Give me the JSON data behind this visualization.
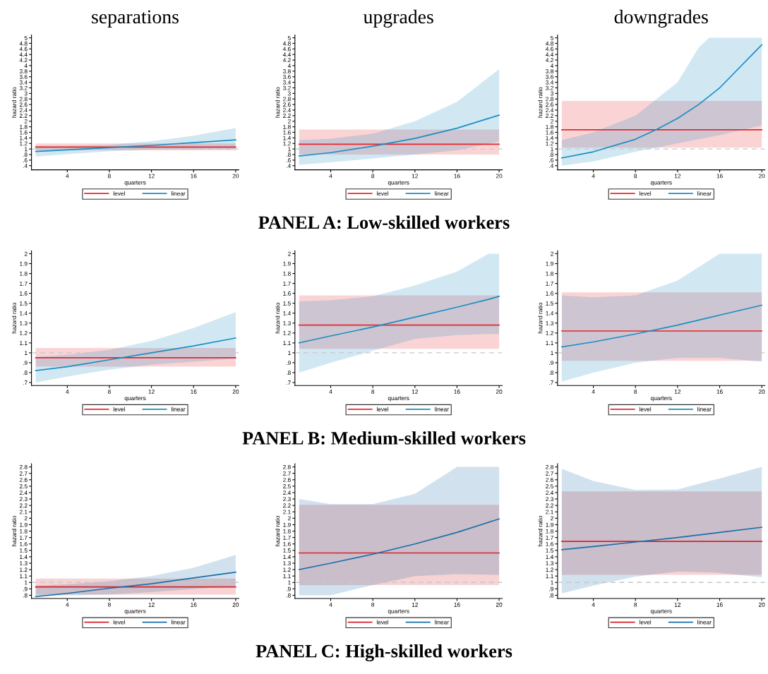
{
  "chart_data": [
    {
      "type": "line",
      "title": "separations",
      "xlabel": "quarters",
      "ylabel": "hazard ratio",
      "xlim": [
        0.6,
        20.3
      ],
      "xticks": [
        4,
        8,
        12,
        16,
        20
      ],
      "ylim": [
        0.25,
        5.1
      ],
      "yticks": [
        {
          "value": 0.4,
          "label": ".4"
        },
        {
          "value": 0.6,
          "label": ".6"
        },
        {
          "value": 0.8,
          "label": ".8"
        },
        1,
        1.2,
        1.4,
        1.6,
        1.8,
        2,
        2.2,
        2.4,
        2.6,
        2.8,
        3,
        3.2,
        3.4,
        3.6,
        3.8,
        4,
        4.2,
        4.4,
        4.6,
        4.8,
        5
      ],
      "grid": false,
      "legend": "bottom",
      "ref_lines": [
        {
          "axis": "y",
          "value": 1,
          "color": "#c8c8c8",
          "line_style": "dashed"
        }
      ],
      "series": [
        {
          "name": "level",
          "color": "#e8262b",
          "x": [
            1,
            20
          ],
          "values": [
            1.07,
            1.07
          ],
          "lower": [
            0.95,
            0.95
          ],
          "upper": [
            1.2,
            1.2
          ]
        },
        {
          "name": "linear",
          "color": "#1a8ec2",
          "x": [
            1,
            4,
            8,
            12,
            16,
            20
          ],
          "values": [
            0.91,
            0.97,
            1.05,
            1.13,
            1.23,
            1.33
          ],
          "lower": [
            0.73,
            0.81,
            0.92,
            0.98,
            0.99,
            1.0
          ],
          "upper": [
            1.12,
            1.12,
            1.15,
            1.28,
            1.48,
            1.76
          ]
        }
      ]
    },
    {
      "type": "line",
      "title": "upgrades",
      "xlabel": "quarters",
      "ylabel": "hazard ratio",
      "xlim": [
        0.6,
        20.3
      ],
      "xticks": [
        4,
        8,
        12,
        16,
        20
      ],
      "ylim": [
        0.25,
        5.1
      ],
      "yticks": [
        {
          "value": 0.4,
          "label": ".4"
        },
        {
          "value": 0.6,
          "label": ".6"
        },
        {
          "value": 0.8,
          "label": ".8"
        },
        1,
        1.2,
        1.4,
        1.6,
        1.8,
        2,
        2.2,
        2.4,
        2.6,
        2.8,
        3,
        3.2,
        3.4,
        3.6,
        3.8,
        4,
        4.2,
        4.4,
        4.6,
        4.8,
        5
      ],
      "grid": false,
      "legend": "bottom",
      "ref_lines": [
        {
          "axis": "y",
          "value": 1,
          "color": "#c8c8c8",
          "line_style": "dashed"
        }
      ],
      "annotations": [
        "PANEL A: Low-skilled workers"
      ],
      "series": [
        {
          "name": "level",
          "color": "#e8262b",
          "x": [
            1,
            20
          ],
          "values": [
            1.17,
            1.17
          ],
          "lower": [
            0.8,
            0.8
          ],
          "upper": [
            1.7,
            1.7
          ]
        },
        {
          "name": "linear",
          "color": "#1a8ec2",
          "x": [
            1,
            4,
            8,
            12,
            16,
            20
          ],
          "values": [
            0.75,
            0.87,
            1.1,
            1.38,
            1.75,
            2.22
          ],
          "lower": [
            0.43,
            0.52,
            0.66,
            0.8,
            0.95,
            1.27
          ],
          "upper": [
            1.32,
            1.37,
            1.55,
            2.0,
            2.7,
            3.87
          ]
        }
      ]
    },
    {
      "type": "line",
      "title": "downgrades",
      "xlabel": "quarters",
      "ylabel": "hazard ratio",
      "xlim": [
        0.6,
        20.3
      ],
      "xticks": [
        4,
        8,
        12,
        16,
        20
      ],
      "ylim": [
        0.25,
        5.1
      ],
      "yticks": [
        {
          "value": 0.4,
          "label": ".4"
        },
        {
          "value": 0.6,
          "label": ".6"
        },
        {
          "value": 0.8,
          "label": ".8"
        },
        1,
        1.2,
        1.4,
        1.6,
        1.8,
        2,
        2.2,
        2.4,
        2.6,
        2.8,
        3,
        3.2,
        3.4,
        3.6,
        3.8,
        4,
        4.2,
        4.4,
        4.6,
        4.8,
        5
      ],
      "grid": false,
      "legend": "bottom",
      "ref_lines": [
        {
          "axis": "y",
          "value": 1,
          "color": "#c8c8c8",
          "line_style": "dashed"
        }
      ],
      "series": [
        {
          "name": "level",
          "color": "#e8262b",
          "x": [
            1,
            20
          ],
          "values": [
            1.69,
            1.69
          ],
          "lower": [
            1.05,
            1.05
          ],
          "upper": [
            2.73,
            2.73
          ]
        },
        {
          "name": "linear",
          "color": "#1a8ec2",
          "x": [
            1,
            4,
            8,
            10,
            12,
            14,
            15,
            16,
            20
          ],
          "values": [
            0.68,
            0.9,
            1.35,
            1.7,
            2.1,
            2.6,
            2.9,
            3.2,
            4.75
          ],
          "lower": [
            0.4,
            0.55,
            0.9,
            1.05,
            1.2,
            1.35,
            1.42,
            1.5,
            1.85
          ],
          "upper": [
            1.32,
            1.6,
            2.2,
            2.8,
            3.4,
            4.65,
            5.0,
            5.0,
            5.0
          ]
        }
      ]
    },
    {
      "type": "line",
      "xlabel": "quarters",
      "ylabel": "hazard ratio",
      "xlim": [
        0.6,
        20.3
      ],
      "xticks": [
        4,
        8,
        12,
        16,
        20
      ],
      "ylim": [
        0.67,
        2.03
      ],
      "yticks": [
        {
          "value": 0.7,
          "label": ".7"
        },
        {
          "value": 0.8,
          "label": ".8"
        },
        {
          "value": 0.9,
          "label": ".9"
        },
        1,
        1.1,
        1.2,
        1.3,
        1.4,
        1.5,
        1.6,
        1.7,
        1.8,
        1.9,
        2
      ],
      "grid": false,
      "legend": "bottom",
      "ref_lines": [
        {
          "axis": "y",
          "value": 1,
          "color": "#c8c8c8",
          "line_style": "dashed"
        }
      ],
      "series": [
        {
          "name": "level",
          "color": "#e8262b",
          "x": [
            1,
            20
          ],
          "values": [
            0.95,
            0.95
          ],
          "lower": [
            0.86,
            0.86
          ],
          "upper": [
            1.05,
            1.05
          ]
        },
        {
          "name": "linear",
          "color": "#1a8ec2",
          "x": [
            1,
            4,
            8,
            12,
            16,
            20
          ],
          "values": [
            0.82,
            0.86,
            0.93,
            1.0,
            1.07,
            1.15
          ],
          "lower": [
            0.7,
            0.76,
            0.83,
            0.88,
            0.91,
            0.94
          ],
          "upper": [
            0.96,
            0.98,
            1.03,
            1.12,
            1.25,
            1.41
          ]
        }
      ]
    },
    {
      "type": "line",
      "xlabel": "quarters",
      "ylabel": "hazard ratio",
      "xlim": [
        0.6,
        20.3
      ],
      "xticks": [
        4,
        8,
        12,
        16,
        20
      ],
      "ylim": [
        0.67,
        2.03
      ],
      "yticks": [
        {
          "value": 0.7,
          "label": ".7"
        },
        {
          "value": 0.8,
          "label": ".8"
        },
        {
          "value": 0.9,
          "label": ".9"
        },
        1,
        1.1,
        1.2,
        1.3,
        1.4,
        1.5,
        1.6,
        1.7,
        1.8,
        1.9,
        2
      ],
      "grid": false,
      "legend": "bottom",
      "ref_lines": [
        {
          "axis": "y",
          "value": 1,
          "color": "#c8c8c8",
          "line_style": "dashed"
        }
      ],
      "annotations": [
        "PANEL B: Medium-skilled workers"
      ],
      "series": [
        {
          "name": "level",
          "color": "#e8262b",
          "x": [
            1,
            20
          ],
          "values": [
            1.28,
            1.28
          ],
          "lower": [
            1.04,
            1.04
          ],
          "upper": [
            1.58,
            1.58
          ]
        },
        {
          "name": "linear",
          "color": "#1a8ec2",
          "x": [
            1,
            4,
            8,
            12,
            16,
            19,
            20
          ],
          "values": [
            1.1,
            1.17,
            1.26,
            1.36,
            1.46,
            1.54,
            1.57
          ],
          "lower": [
            0.8,
            0.9,
            1.02,
            1.14,
            1.18,
            1.19,
            1.19
          ],
          "upper": [
            1.52,
            1.53,
            1.57,
            1.68,
            1.82,
            2.0,
            2.0
          ]
        }
      ]
    },
    {
      "type": "line",
      "xlabel": "quarters",
      "ylabel": "hazard ratio",
      "xlim": [
        0.6,
        20.3
      ],
      "xticks": [
        4,
        8,
        12,
        16,
        20
      ],
      "ylim": [
        0.67,
        2.03
      ],
      "yticks": [
        {
          "value": 0.7,
          "label": ".7"
        },
        {
          "value": 0.8,
          "label": ".8"
        },
        {
          "value": 0.9,
          "label": ".9"
        },
        1,
        1.1,
        1.2,
        1.3,
        1.4,
        1.5,
        1.6,
        1.7,
        1.8,
        1.9,
        2
      ],
      "grid": false,
      "legend": "bottom",
      "ref_lines": [
        {
          "axis": "y",
          "value": 1,
          "color": "#c8c8c8",
          "line_style": "dashed"
        }
      ],
      "series": [
        {
          "name": "level",
          "color": "#e8262b",
          "x": [
            1,
            20
          ],
          "values": [
            1.22,
            1.22
          ],
          "lower": [
            0.92,
            0.92
          ],
          "upper": [
            1.61,
            1.61
          ]
        },
        {
          "name": "linear",
          "color": "#1a8ec2",
          "x": [
            1,
            4,
            8,
            12,
            16,
            20
          ],
          "values": [
            1.06,
            1.11,
            1.19,
            1.28,
            1.38,
            1.48
          ],
          "lower": [
            0.71,
            0.8,
            0.9,
            0.95,
            0.95,
            0.91
          ],
          "upper": [
            1.58,
            1.56,
            1.58,
            1.73,
            2.0,
            2.0
          ]
        }
      ]
    },
    {
      "type": "line",
      "xlabel": "quarters",
      "ylabel": "hazard ratio",
      "xlim": [
        0.6,
        20.3
      ],
      "xticks": [
        4,
        8,
        12,
        16,
        20
      ],
      "ylim": [
        0.75,
        2.85
      ],
      "yticks": [
        {
          "value": 0.8,
          "label": ".8"
        },
        {
          "value": 0.9,
          "label": ".9"
        },
        1,
        1.1,
        1.2,
        1.3,
        1.4,
        1.5,
        1.6,
        1.7,
        1.8,
        1.9,
        2,
        2.1,
        2.2,
        2.3,
        2.4,
        2.5,
        2.6,
        2.7,
        2.8
      ],
      "grid": false,
      "legend": "bottom",
      "ref_lines": [
        {
          "axis": "y",
          "value": 1,
          "color": "#c8c8c8",
          "line_style": "dashed"
        }
      ],
      "series": [
        {
          "name": "level",
          "color": "#d8212a",
          "x": [
            1,
            20
          ],
          "values": [
            0.93,
            0.93
          ],
          "lower": [
            0.81,
            0.81
          ],
          "upper": [
            1.06,
            1.06
          ]
        },
        {
          "name": "linear",
          "color": "#1b6ea8",
          "x": [
            1,
            4,
            8,
            12,
            16,
            20
          ],
          "values": [
            0.78,
            0.83,
            0.91,
            0.98,
            1.07,
            1.16
          ],
          "lower": [
            0.79,
            0.8,
            0.81,
            0.85,
            0.9,
            0.94
          ],
          "upper": [
            0.95,
            0.97,
            1.02,
            1.1,
            1.23,
            1.43
          ]
        }
      ]
    },
    {
      "type": "line",
      "xlabel": "quarters",
      "ylabel": "hazard ratio",
      "xlim": [
        0.6,
        20.3
      ],
      "xticks": [
        4,
        8,
        12,
        16,
        20
      ],
      "ylim": [
        0.75,
        2.85
      ],
      "yticks": [
        {
          "value": 0.8,
          "label": ".8"
        },
        {
          "value": 0.9,
          "label": ".9"
        },
        1,
        1.1,
        1.2,
        1.3,
        1.4,
        1.5,
        1.6,
        1.7,
        1.8,
        1.9,
        2,
        2.1,
        2.2,
        2.3,
        2.4,
        2.5,
        2.6,
        2.7,
        2.8
      ],
      "grid": false,
      "legend": "bottom",
      "ref_lines": [
        {
          "axis": "y",
          "value": 1,
          "color": "#c8c8c8",
          "line_style": "dashed"
        }
      ],
      "annotations": [
        "PANEL C: High-skilled workers"
      ],
      "series": [
        {
          "name": "level",
          "color": "#d8212a",
          "x": [
            1,
            20
          ],
          "values": [
            1.46,
            1.46
          ],
          "lower": [
            0.96,
            0.96
          ],
          "upper": [
            2.21,
            2.21
          ]
        },
        {
          "name": "linear",
          "color": "#1b6ea8",
          "x": [
            1,
            4,
            8,
            12,
            16,
            20
          ],
          "values": [
            1.2,
            1.3,
            1.44,
            1.6,
            1.78,
            1.99
          ],
          "lower": [
            0.8,
            0.8,
            0.96,
            1.1,
            1.13,
            1.12
          ],
          "upper": [
            2.3,
            2.22,
            2.22,
            2.38,
            2.8,
            2.8
          ]
        }
      ]
    },
    {
      "type": "line",
      "xlabel": "quarters",
      "ylabel": "hazard ratio",
      "xlim": [
        0.6,
        20.3
      ],
      "xticks": [
        4,
        8,
        12,
        16,
        20
      ],
      "ylim": [
        0.75,
        2.85
      ],
      "yticks": [
        {
          "value": 0.8,
          "label": ".8"
        },
        {
          "value": 0.9,
          "label": ".9"
        },
        1,
        1.1,
        1.2,
        1.3,
        1.4,
        1.5,
        1.6,
        1.7,
        1.8,
        1.9,
        2,
        2.1,
        2.2,
        2.3,
        2.4,
        2.5,
        2.6,
        2.7,
        2.8
      ],
      "grid": false,
      "legend": "bottom",
      "ref_lines": [
        {
          "axis": "y",
          "value": 1,
          "color": "#c8c8c8",
          "line_style": "dashed"
        }
      ],
      "series": [
        {
          "name": "level",
          "color": "#d8212a",
          "x": [
            1,
            20
          ],
          "values": [
            1.64,
            1.64
          ],
          "lower": [
            1.12,
            1.12
          ],
          "upper": [
            2.42,
            2.42
          ]
        },
        {
          "name": "linear",
          "color": "#1b6ea8",
          "x": [
            1,
            4,
            8,
            12,
            16,
            20
          ],
          "values": [
            1.51,
            1.56,
            1.63,
            1.7,
            1.78,
            1.86
          ],
          "lower": [
            0.83,
            0.95,
            1.09,
            1.17,
            1.15,
            1.08
          ],
          "upper": [
            2.77,
            2.58,
            2.44,
            2.45,
            2.62,
            2.8
          ]
        }
      ]
    }
  ]
}
